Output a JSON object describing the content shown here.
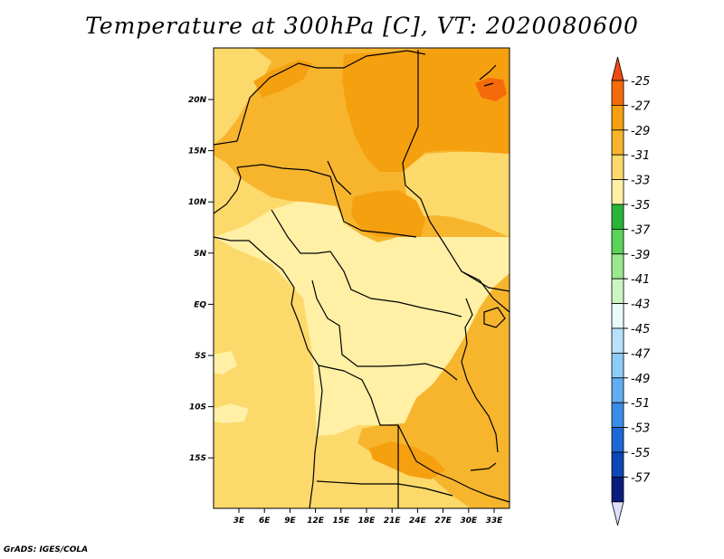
{
  "title": "Temperature at 300hPa [C], VT: 2020080600",
  "credit": "GrADS: IGES/COLA",
  "map": {
    "lat_labels": [
      {
        "value": 20,
        "label": "20N"
      },
      {
        "value": 15,
        "label": "15N"
      },
      {
        "value": 10,
        "label": "10N"
      },
      {
        "value": 5,
        "label": "5N"
      },
      {
        "value": 0,
        "label": "EQ"
      },
      {
        "value": -5,
        "label": "5S"
      },
      {
        "value": -10,
        "label": "10S"
      },
      {
        "value": -15,
        "label": "15S"
      }
    ],
    "lon_labels": [
      {
        "value": 3,
        "label": "3E"
      },
      {
        "value": 6,
        "label": "6E"
      },
      {
        "value": 9,
        "label": "9E"
      },
      {
        "value": 12,
        "label": "12E"
      },
      {
        "value": 15,
        "label": "15E"
      },
      {
        "value": 18,
        "label": "18E"
      },
      {
        "value": 21,
        "label": "21E"
      },
      {
        "value": 24,
        "label": "24E"
      },
      {
        "value": 27,
        "label": "27E"
      },
      {
        "value": 30,
        "label": "30E"
      },
      {
        "value": 33,
        "label": "33E"
      }
    ]
  },
  "colorbar": {
    "labels": [
      "-25",
      "-27",
      "-29",
      "-31",
      "-33",
      "-35",
      "-37",
      "-39",
      "-41",
      "-43",
      "-45",
      "-47",
      "-49",
      "-51",
      "-53",
      "-55",
      "-57"
    ],
    "colors": {
      "above": "#f04a14",
      "bins": [
        "#f56a0a",
        "#f5a00f",
        "#f7b52e",
        "#fcd96b",
        "#fff0a6",
        "#2ab43a",
        "#5bd35b",
        "#9be88f",
        "#cdf5c4",
        "#e8fbf9",
        "#b8e1fb",
        "#8ecbf7",
        "#62adf1",
        "#3a8ce6",
        "#1d67d4",
        "#0d46b6",
        "#0b1d7c"
      ],
      "below": "#dde0fb"
    }
  }
}
